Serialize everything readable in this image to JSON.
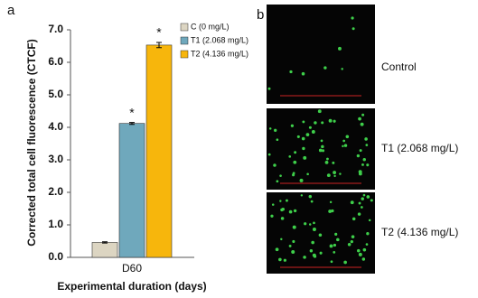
{
  "panel_labels": [
    "a",
    "b"
  ],
  "chart_data": {
    "type": "bar",
    "categories": [
      "D60"
    ],
    "xlabel": "Experimental duration (days)",
    "ylabel": "Corrected total cell fluorescence (CTCF)",
    "ylim": [
      0,
      7
    ],
    "yticks": [
      {
        "value": 0,
        "label": "0.0"
      },
      {
        "value": 1,
        "label": "1.0"
      },
      {
        "value": 2,
        "label": "2.0"
      },
      {
        "value": 3,
        "label": "3.0"
      },
      {
        "value": 4,
        "label": "4.0"
      },
      {
        "value": 5,
        "label": "5.0"
      },
      {
        "value": 6,
        "label": "6.0"
      },
      {
        "value": 7,
        "label": "7.0"
      }
    ],
    "legend": "upper right",
    "series": [
      {
        "name": "C (0 mg/L)",
        "color": "#dcd5c2",
        "values": [
          0.46
        ],
        "errors": [
          0.02
        ]
      },
      {
        "name": "T1 (2.068 mg/L)",
        "color": "#6fa8bc",
        "values": [
          4.12
        ],
        "errors": [
          0.03
        ],
        "mark_label": "*"
      },
      {
        "name": "T2 (4.136 mg/L)",
        "color": "#f7b60c",
        "values": [
          6.53
        ],
        "errors": [
          0.08
        ],
        "mark_label": "*"
      }
    ]
  },
  "image_labels": [
    "Control",
    "T1 (2.068 mg/L)",
    "T2 (4.136 mg/L)"
  ]
}
